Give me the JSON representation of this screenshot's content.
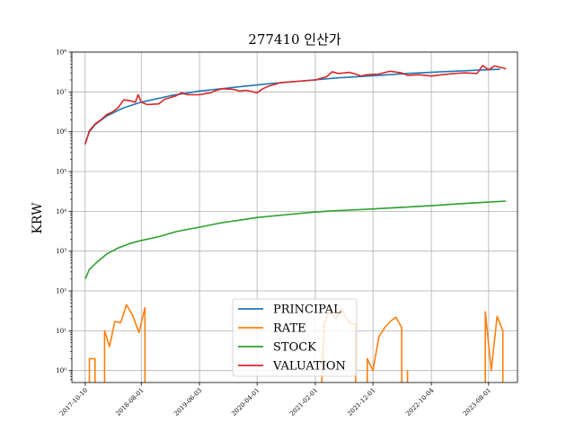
{
  "chart_data": {
    "type": "line",
    "title": "277410 인산가",
    "xlabel": "",
    "ylabel": "KRW",
    "yscale": "log",
    "ylim_exponents": [
      -0.3,
      8.0
    ],
    "y_ticks": [
      {
        "exp": 0,
        "label": "10⁰"
      },
      {
        "exp": 1,
        "label": "10¹"
      },
      {
        "exp": 2,
        "label": "10²"
      },
      {
        "exp": 3,
        "label": "10³"
      },
      {
        "exp": 4,
        "label": "10⁴"
      },
      {
        "exp": 5,
        "label": "10⁵"
      },
      {
        "exp": 6,
        "label": "10⁶"
      },
      {
        "exp": 7,
        "label": "10⁷"
      },
      {
        "exp": 8,
        "label": "10⁸"
      }
    ],
    "x_range": [
      "2017-08-01",
      "2023-12-31"
    ],
    "x_ticks": [
      "2017-10-10",
      "2018-08-01",
      "2019-06-03",
      "2020-04-01",
      "2021-02-01",
      "2021-12-01",
      "2022-10-04",
      "2023-08-01"
    ],
    "grid": true,
    "legend_position": "lower center",
    "colors": {
      "PRINCIPAL": "#1f77b4",
      "RATE": "#ff7f0e",
      "STOCK": "#2ca02c",
      "VALUATION": "#d62728"
    },
    "series": [
      {
        "name": "PRINCIPAL",
        "points": [
          [
            "2017-10-10",
            500000
          ],
          [
            "2017-11-01",
            1000000
          ],
          [
            "2017-12-01",
            1500000
          ],
          [
            "2018-02-01",
            2500000
          ],
          [
            "2018-05-01",
            4000000
          ],
          [
            "2018-08-01",
            5500000
          ],
          [
            "2019-01-01",
            8000000
          ],
          [
            "2019-06-03",
            10500000
          ],
          [
            "2020-01-01",
            13500000
          ],
          [
            "2020-06-01",
            16000000
          ],
          [
            "2021-01-01",
            19500000
          ],
          [
            "2021-06-01",
            22500000
          ],
          [
            "2022-01-01",
            26000000
          ],
          [
            "2022-06-01",
            29000000
          ],
          [
            "2023-01-01",
            32500000
          ],
          [
            "2023-06-01",
            35000000
          ],
          [
            "2023-10-01",
            37000000
          ]
        ]
      },
      {
        "name": "RATE",
        "points": [
          [
            "2017-10-10",
            0.1
          ],
          [
            "2017-11-01",
            0.1
          ],
          [
            "2017-11-01",
            2
          ],
          [
            "2017-12-01",
            2
          ],
          [
            "2017-12-01",
            0.1
          ],
          [
            "2018-01-20",
            0.1
          ],
          [
            "2018-01-20",
            10
          ],
          [
            "2018-02-15",
            4
          ],
          [
            "2018-03-15",
            17
          ],
          [
            "2018-04-15",
            16
          ],
          [
            "2018-05-15",
            45
          ],
          [
            "2018-06-15",
            25
          ],
          [
            "2018-07-20",
            9
          ],
          [
            "2018-08-20",
            38
          ],
          [
            "2018-08-20",
            0.1
          ],
          [
            "2021-03-01",
            0.1
          ],
          [
            "2021-03-20",
            15
          ],
          [
            "2021-04-15",
            30
          ],
          [
            "2021-05-20",
            20
          ],
          [
            "2021-06-20",
            35
          ],
          [
            "2021-07-15",
            20
          ],
          [
            "2021-08-10",
            15
          ],
          [
            "2021-09-01",
            15
          ],
          [
            "2021-09-01",
            0.1
          ],
          [
            "2021-11-01",
            0.1
          ],
          [
            "2021-11-01",
            2
          ],
          [
            "2021-12-01",
            1
          ],
          [
            "2022-01-01",
            7
          ],
          [
            "2022-02-01",
            12
          ],
          [
            "2022-03-01",
            17
          ],
          [
            "2022-04-01",
            22
          ],
          [
            "2022-05-01",
            12
          ],
          [
            "2022-05-01",
            0.1
          ],
          [
            "2022-06-01",
            0.1
          ],
          [
            "2022-06-01",
            1
          ],
          [
            "2022-06-01",
            0.1
          ],
          [
            "2023-07-15",
            0.1
          ],
          [
            "2023-07-15",
            30
          ],
          [
            "2023-08-15",
            1
          ],
          [
            "2023-09-15",
            23
          ],
          [
            "2023-10-15",
            10
          ],
          [
            "2023-10-15",
            0.1
          ]
        ]
      },
      {
        "name": "STOCK",
        "points": [
          [
            "2017-10-10",
            200
          ],
          [
            "2017-11-01",
            350
          ],
          [
            "2017-12-15",
            550
          ],
          [
            "2018-02-01",
            850
          ],
          [
            "2018-04-01",
            1200
          ],
          [
            "2018-06-01",
            1550
          ],
          [
            "2018-08-01",
            1850
          ],
          [
            "2018-11-01",
            2300
          ],
          [
            "2019-02-01",
            3100
          ],
          [
            "2019-06-03",
            4000
          ],
          [
            "2019-10-01",
            5200
          ],
          [
            "2020-01-01",
            6000
          ],
          [
            "2020-04-01",
            7000
          ],
          [
            "2020-10-01",
            8500
          ],
          [
            "2021-02-01",
            9600
          ],
          [
            "2021-06-01",
            10400
          ],
          [
            "2021-12-01",
            11500
          ],
          [
            "2022-06-01",
            12800
          ],
          [
            "2022-10-04",
            13800
          ],
          [
            "2023-03-01",
            15500
          ],
          [
            "2023-08-01",
            17000
          ],
          [
            "2023-11-01",
            18000
          ]
        ]
      },
      {
        "name": "VALUATION",
        "points": [
          [
            "2017-10-10",
            480000
          ],
          [
            "2017-11-01",
            1050000
          ],
          [
            "2017-12-01",
            1550000
          ],
          [
            "2018-01-01",
            2000000
          ],
          [
            "2018-02-01",
            2700000
          ],
          [
            "2018-03-01",
            3100000
          ],
          [
            "2018-04-01",
            4000000
          ],
          [
            "2018-05-01",
            6300000
          ],
          [
            "2018-06-01",
            6000000
          ],
          [
            "2018-07-01",
            5500000
          ],
          [
            "2018-07-15",
            8500000
          ],
          [
            "2018-08-01",
            5500000
          ],
          [
            "2018-09-01",
            4800000
          ],
          [
            "2018-11-01",
            5000000
          ],
          [
            "2018-12-01",
            6500000
          ],
          [
            "2019-02-01",
            8000000
          ],
          [
            "2019-03-01",
            9500000
          ],
          [
            "2019-04-01",
            8500000
          ],
          [
            "2019-06-03",
            8500000
          ],
          [
            "2019-08-01",
            9500000
          ],
          [
            "2019-09-01",
            11000000
          ],
          [
            "2019-10-01",
            12000000
          ],
          [
            "2019-12-01",
            11500000
          ],
          [
            "2020-01-01",
            10500000
          ],
          [
            "2020-02-01",
            11000000
          ],
          [
            "2020-04-01",
            9500000
          ],
          [
            "2020-05-01",
            12000000
          ],
          [
            "2020-06-01",
            14000000
          ],
          [
            "2020-08-01",
            17000000
          ],
          [
            "2020-10-01",
            18000000
          ],
          [
            "2021-02-01",
            20000000
          ],
          [
            "2021-04-01",
            24000000
          ],
          [
            "2021-05-01",
            32000000
          ],
          [
            "2021-06-01",
            29000000
          ],
          [
            "2021-08-01",
            31000000
          ],
          [
            "2021-09-01",
            28000000
          ],
          [
            "2021-10-01",
            25000000
          ],
          [
            "2021-11-01",
            27000000
          ],
          [
            "2022-01-01",
            28000000
          ],
          [
            "2022-03-01",
            33000000
          ],
          [
            "2022-05-01",
            30000000
          ],
          [
            "2022-06-01",
            26000000
          ],
          [
            "2022-08-01",
            27000000
          ],
          [
            "2022-10-04",
            25000000
          ],
          [
            "2022-12-01",
            27000000
          ],
          [
            "2023-02-01",
            29000000
          ],
          [
            "2023-04-01",
            30000000
          ],
          [
            "2023-06-01",
            29000000
          ],
          [
            "2023-07-01",
            46000000
          ],
          [
            "2023-08-01",
            36000000
          ],
          [
            "2023-09-01",
            45000000
          ],
          [
            "2023-11-01",
            38000000
          ]
        ]
      }
    ]
  }
}
